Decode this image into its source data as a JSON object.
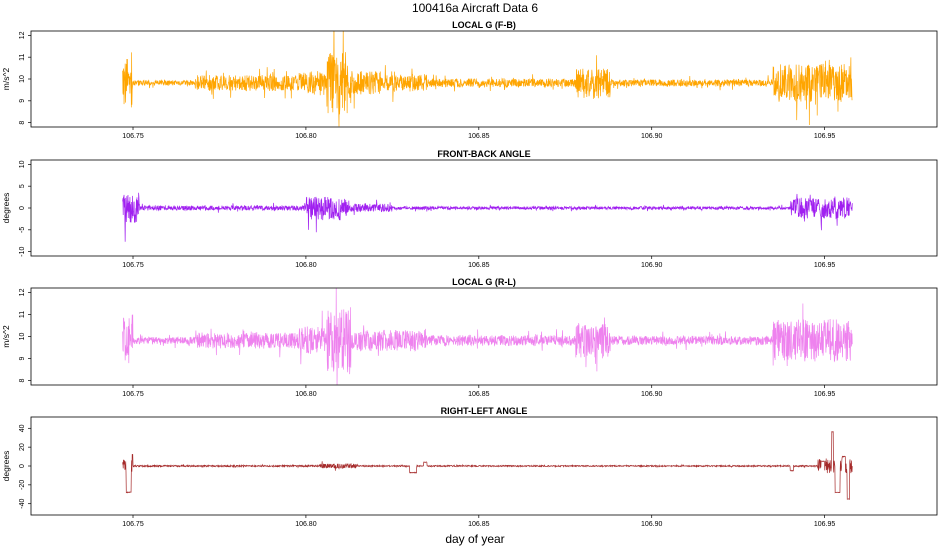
{
  "figure": {
    "title": "100416a   Aircraft Data 6",
    "xlabel": "day of year"
  },
  "chart_data": [
    {
      "type": "line",
      "title": "LOCAL G (F-B)",
      "ylabel": "m/s^2",
      "color": "#FFA500",
      "xlim": [
        106.7205,
        106.9825
      ],
      "ylim": [
        7.8,
        12.2
      ],
      "xticks": [
        106.75,
        106.8,
        106.85,
        106.9,
        106.95
      ],
      "xtick_labels": [
        "106.75",
        "106.80",
        "106.85",
        "106.90",
        "106.95"
      ],
      "yticks": [
        8,
        9,
        10,
        11,
        12
      ],
      "ytick_labels": [
        "8",
        "9",
        "10",
        "11",
        "12"
      ],
      "x_start": 106.747,
      "x_end": 106.958,
      "baseline": 9.82,
      "noise": 0.12,
      "segments": [
        {
          "x0": 106.747,
          "x1": 106.75,
          "amp": 1.4
        },
        {
          "x0": 106.75,
          "x1": 106.768,
          "amp": 0.15
        },
        {
          "x0": 106.768,
          "x1": 106.798,
          "amp": 0.45
        },
        {
          "x0": 106.798,
          "x1": 106.806,
          "amp": 0.7
        },
        {
          "x0": 106.806,
          "x1": 106.813,
          "amp": 1.8
        },
        {
          "x0": 106.813,
          "x1": 106.822,
          "amp": 0.7
        },
        {
          "x0": 106.822,
          "x1": 106.835,
          "amp": 0.5
        },
        {
          "x0": 106.835,
          "x1": 106.878,
          "amp": 0.25
        },
        {
          "x0": 106.878,
          "x1": 106.888,
          "amp": 0.9
        },
        {
          "x0": 106.888,
          "x1": 106.935,
          "amp": 0.2
        },
        {
          "x0": 106.935,
          "x1": 106.958,
          "amp": 1.1
        }
      ]
    },
    {
      "type": "line",
      "title": "FRONT-BACK ANGLE",
      "ylabel": "degrees",
      "color": "#A020F0",
      "xlim": [
        106.7205,
        106.9825
      ],
      "ylim": [
        -11,
        11
      ],
      "xticks": [
        106.75,
        106.8,
        106.85,
        106.9,
        106.95
      ],
      "xtick_labels": [
        "106.75",
        "106.80",
        "106.85",
        "106.90",
        "106.95"
      ],
      "yticks": [
        -10,
        -5,
        0,
        5,
        10
      ],
      "ytick_labels": [
        "-10",
        "-5",
        "0",
        "5",
        "10"
      ],
      "x_start": 106.747,
      "x_end": 106.958,
      "baseline": 0,
      "noise": 0.25,
      "segments": [
        {
          "x0": 106.747,
          "x1": 106.752,
          "amp": 4.5
        },
        {
          "x0": 106.752,
          "x1": 106.8,
          "amp": 0.7
        },
        {
          "x0": 106.8,
          "x1": 106.812,
          "amp": 3.5
        },
        {
          "x0": 106.812,
          "x1": 106.825,
          "amp": 1.2
        },
        {
          "x0": 106.825,
          "x1": 106.94,
          "amp": 0.45
        },
        {
          "x0": 106.94,
          "x1": 106.958,
          "amp": 3.0
        }
      ]
    },
    {
      "type": "line",
      "title": "LOCAL G (R-L)",
      "ylabel": "m/s^2",
      "color": "#EE82EE",
      "xlim": [
        106.7205,
        106.9825
      ],
      "ylim": [
        7.8,
        12.2
      ],
      "xticks": [
        106.75,
        106.8,
        106.85,
        106.9,
        106.95
      ],
      "xtick_labels": [
        "106.75",
        "106.80",
        "106.85",
        "106.90",
        "106.95"
      ],
      "yticks": [
        8,
        9,
        10,
        11,
        12
      ],
      "ytick_labels": [
        "8",
        "9",
        "10",
        "11",
        "12"
      ],
      "x_start": 106.747,
      "x_end": 106.958,
      "baseline": 9.82,
      "noise": 0.12,
      "segments": [
        {
          "x0": 106.747,
          "x1": 106.75,
          "amp": 1.5
        },
        {
          "x0": 106.75,
          "x1": 106.768,
          "amp": 0.2
        },
        {
          "x0": 106.768,
          "x1": 106.798,
          "amp": 0.45
        },
        {
          "x0": 106.798,
          "x1": 106.806,
          "amp": 0.8
        },
        {
          "x0": 106.806,
          "x1": 106.813,
          "amp": 1.9
        },
        {
          "x0": 106.813,
          "x1": 106.835,
          "amp": 0.6
        },
        {
          "x0": 106.835,
          "x1": 106.878,
          "amp": 0.3
        },
        {
          "x0": 106.878,
          "x1": 106.888,
          "amp": 1.0
        },
        {
          "x0": 106.888,
          "x1": 106.935,
          "amp": 0.25
        },
        {
          "x0": 106.935,
          "x1": 106.958,
          "amp": 1.2
        }
      ]
    },
    {
      "type": "line",
      "title": "RIGHT-LEFT ANGLE",
      "ylabel": "degrees",
      "color": "#A52A2A",
      "xlim": [
        106.7205,
        106.9825
      ],
      "ylim": [
        -52,
        52
      ],
      "xticks": [
        106.75,
        106.8,
        106.85,
        106.9,
        106.95
      ],
      "xtick_labels": [
        "106.75",
        "106.80",
        "106.85",
        "106.90",
        "106.95"
      ],
      "yticks": [
        -40,
        -20,
        0,
        20,
        40
      ],
      "ytick_labels": [
        "-40",
        "-20",
        "0",
        "20",
        "40"
      ],
      "x_start": 106.747,
      "x_end": 106.958,
      "baseline": 0,
      "noise": 0.4,
      "segments": [
        {
          "x0": 106.747,
          "x1": 106.75,
          "amp": 8
        },
        {
          "x0": 106.75,
          "x1": 106.804,
          "amp": 1
        },
        {
          "x0": 106.804,
          "x1": 106.815,
          "amp": 3
        },
        {
          "x0": 106.815,
          "x1": 106.948,
          "amp": 0.8
        },
        {
          "x0": 106.948,
          "x1": 106.958,
          "amp": 10
        }
      ],
      "events": [
        {
          "x0": 106.748,
          "x1": 106.7495,
          "value": -28
        },
        {
          "x0": 106.7497,
          "x1": 106.75,
          "value": 12
        },
        {
          "x0": 106.83,
          "x1": 106.832,
          "value": -7
        },
        {
          "x0": 106.834,
          "x1": 106.835,
          "value": 4
        },
        {
          "x0": 106.94,
          "x1": 106.941,
          "value": -5
        },
        {
          "x0": 106.949,
          "x1": 106.95,
          "value": 5
        },
        {
          "x0": 106.952,
          "x1": 106.9525,
          "value": 36
        },
        {
          "x0": 106.953,
          "x1": 106.9545,
          "value": -28
        },
        {
          "x0": 106.955,
          "x1": 106.956,
          "value": 10
        },
        {
          "x0": 106.9565,
          "x1": 106.9572,
          "value": -35
        }
      ]
    }
  ]
}
